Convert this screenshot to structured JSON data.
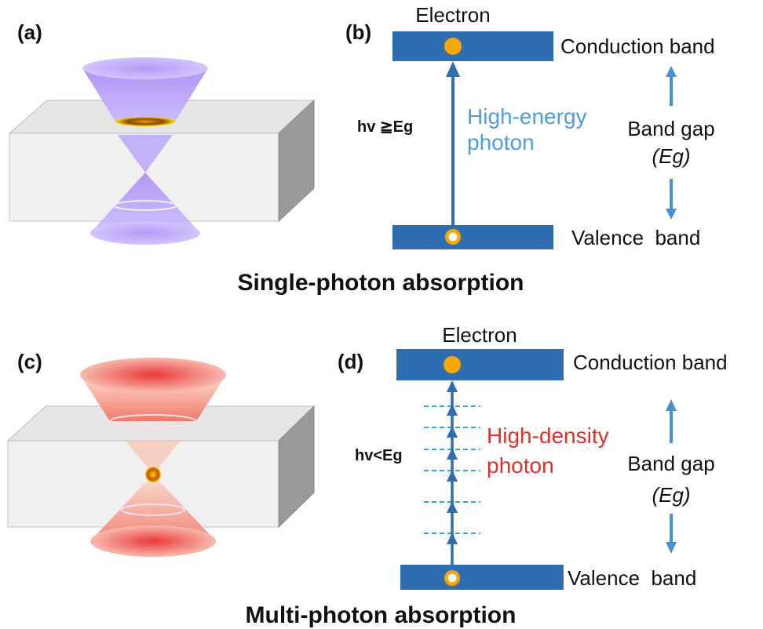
{
  "top": {
    "panel_a": {
      "label": "(a)"
    },
    "panel_b": {
      "label": "(b)",
      "electron": "Electron",
      "conduction_band": "Conduction band",
      "valence_band": "Valence  band",
      "condition": "hv ≧Eg",
      "photon": [
        "High-energy",
        "photon"
      ],
      "band_gap": [
        "Band gap",
        "(Eg)"
      ]
    },
    "caption": "Single-photon absorption"
  },
  "bottom": {
    "panel_c": {
      "label": "(c)"
    },
    "panel_d": {
      "label": "(d)",
      "electron": "Electron",
      "conduction_band": "Conduction band",
      "valence_band": "Valence  band",
      "condition": "hv<Eg",
      "photon": [
        "High-density",
        "photon"
      ],
      "band_gap": [
        "Band gap",
        "(Eg)"
      ]
    },
    "caption": "Multi-photon absorption"
  }
}
